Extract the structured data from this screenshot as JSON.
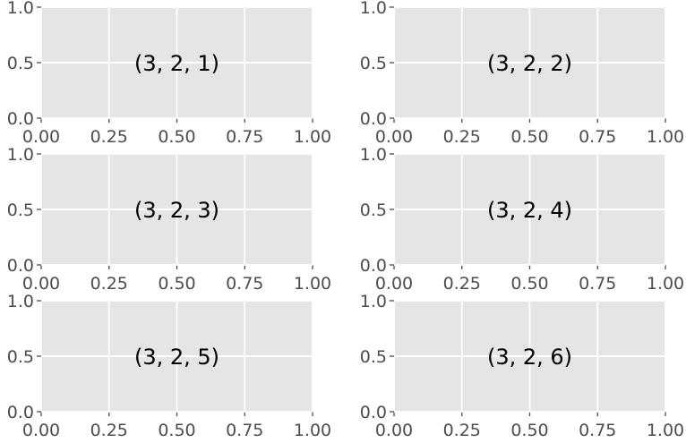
{
  "chart_data": [
    {
      "type": "scatter",
      "title": "",
      "xlabel": "",
      "ylabel": "",
      "xlim": [
        0,
        1
      ],
      "ylim": [
        0,
        1
      ],
      "xticks": [
        "0.00",
        "0.25",
        "0.50",
        "0.75",
        "1.00"
      ],
      "yticks": [
        "0.0",
        "0.5",
        "1.0"
      ],
      "grid": true,
      "series": [],
      "annotation": {
        "text": "(3, 2, 1)",
        "x": 0.5,
        "y": 0.5
      }
    },
    {
      "type": "scatter",
      "title": "",
      "xlabel": "",
      "ylabel": "",
      "xlim": [
        0,
        1
      ],
      "ylim": [
        0,
        1
      ],
      "xticks": [
        "0.00",
        "0.25",
        "0.50",
        "0.75",
        "1.00"
      ],
      "yticks": [
        "0.0",
        "0.5",
        "1.0"
      ],
      "grid": true,
      "series": [],
      "annotation": {
        "text": "(3, 2, 2)",
        "x": 0.5,
        "y": 0.5
      }
    },
    {
      "type": "scatter",
      "title": "",
      "xlabel": "",
      "ylabel": "",
      "xlim": [
        0,
        1
      ],
      "ylim": [
        0,
        1
      ],
      "xticks": [
        "0.00",
        "0.25",
        "0.50",
        "0.75",
        "1.00"
      ],
      "yticks": [
        "0.0",
        "0.5",
        "1.0"
      ],
      "grid": true,
      "series": [],
      "annotation": {
        "text": "(3, 2, 3)",
        "x": 0.5,
        "y": 0.5
      }
    },
    {
      "type": "scatter",
      "title": "",
      "xlabel": "",
      "ylabel": "",
      "xlim": [
        0,
        1
      ],
      "ylim": [
        0,
        1
      ],
      "xticks": [
        "0.00",
        "0.25",
        "0.50",
        "0.75",
        "1.00"
      ],
      "yticks": [
        "0.0",
        "0.5",
        "1.0"
      ],
      "grid": true,
      "series": [],
      "annotation": {
        "text": "(3, 2, 4)",
        "x": 0.5,
        "y": 0.5
      }
    },
    {
      "type": "scatter",
      "title": "",
      "xlabel": "",
      "ylabel": "",
      "xlim": [
        0,
        1
      ],
      "ylim": [
        0,
        1
      ],
      "xticks": [
        "0.00",
        "0.25",
        "0.50",
        "0.75",
        "1.00"
      ],
      "yticks": [
        "0.0",
        "0.5",
        "1.0"
      ],
      "grid": true,
      "series": [],
      "annotation": {
        "text": "(3, 2, 5)",
        "x": 0.5,
        "y": 0.5
      }
    },
    {
      "type": "scatter",
      "title": "",
      "xlabel": "",
      "ylabel": "",
      "xlim": [
        0,
        1
      ],
      "ylim": [
        0,
        1
      ],
      "xticks": [
        "0.00",
        "0.25",
        "0.50",
        "0.75",
        "1.00"
      ],
      "yticks": [
        "0.0",
        "0.5",
        "1.0"
      ],
      "grid": true,
      "series": [],
      "annotation": {
        "text": "(3, 2, 6)",
        "x": 0.5,
        "y": 0.5
      }
    }
  ],
  "style": {
    "panel_background": "#e5e5e5",
    "grid_color": "#ffffff",
    "tick_color": "#4d4d4d",
    "annotation_color": "#000000"
  }
}
